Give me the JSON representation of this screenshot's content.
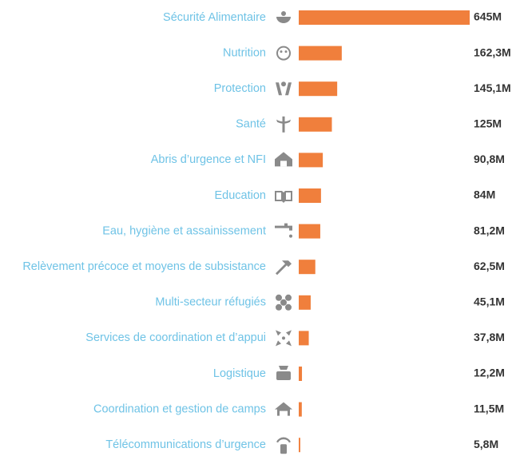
{
  "chart_data": {
    "type": "hbar",
    "categories": [
      "Sécurité Alimentaire",
      "Nutrition",
      "Protection",
      "Santé",
      "Abris d’urgence et NFI",
      "Education",
      "Eau, hygiène et assainissement",
      "Relèvement précoce et moyens de subsistance",
      "Multi-secteur réfugiés",
      "Services de coordination et d’appui",
      "Logistique",
      "Coordination et gestion de camps",
      "Télécommunications d’urgence"
    ],
    "values": [
      645,
      162.3,
      145.1,
      125,
      90.8,
      84,
      81.2,
      62.5,
      45.1,
      37.8,
      12.2,
      11.5,
      5.8
    ],
    "value_labels": [
      "645M",
      "162,3M",
      "145,1M",
      "125M",
      "90,8M",
      "84M",
      "81,2M",
      "62,5M",
      "45,1M",
      "37,8M",
      "12,2M",
      "11,5M",
      "5,8M"
    ],
    "color": "#f07f3c"
  }
}
